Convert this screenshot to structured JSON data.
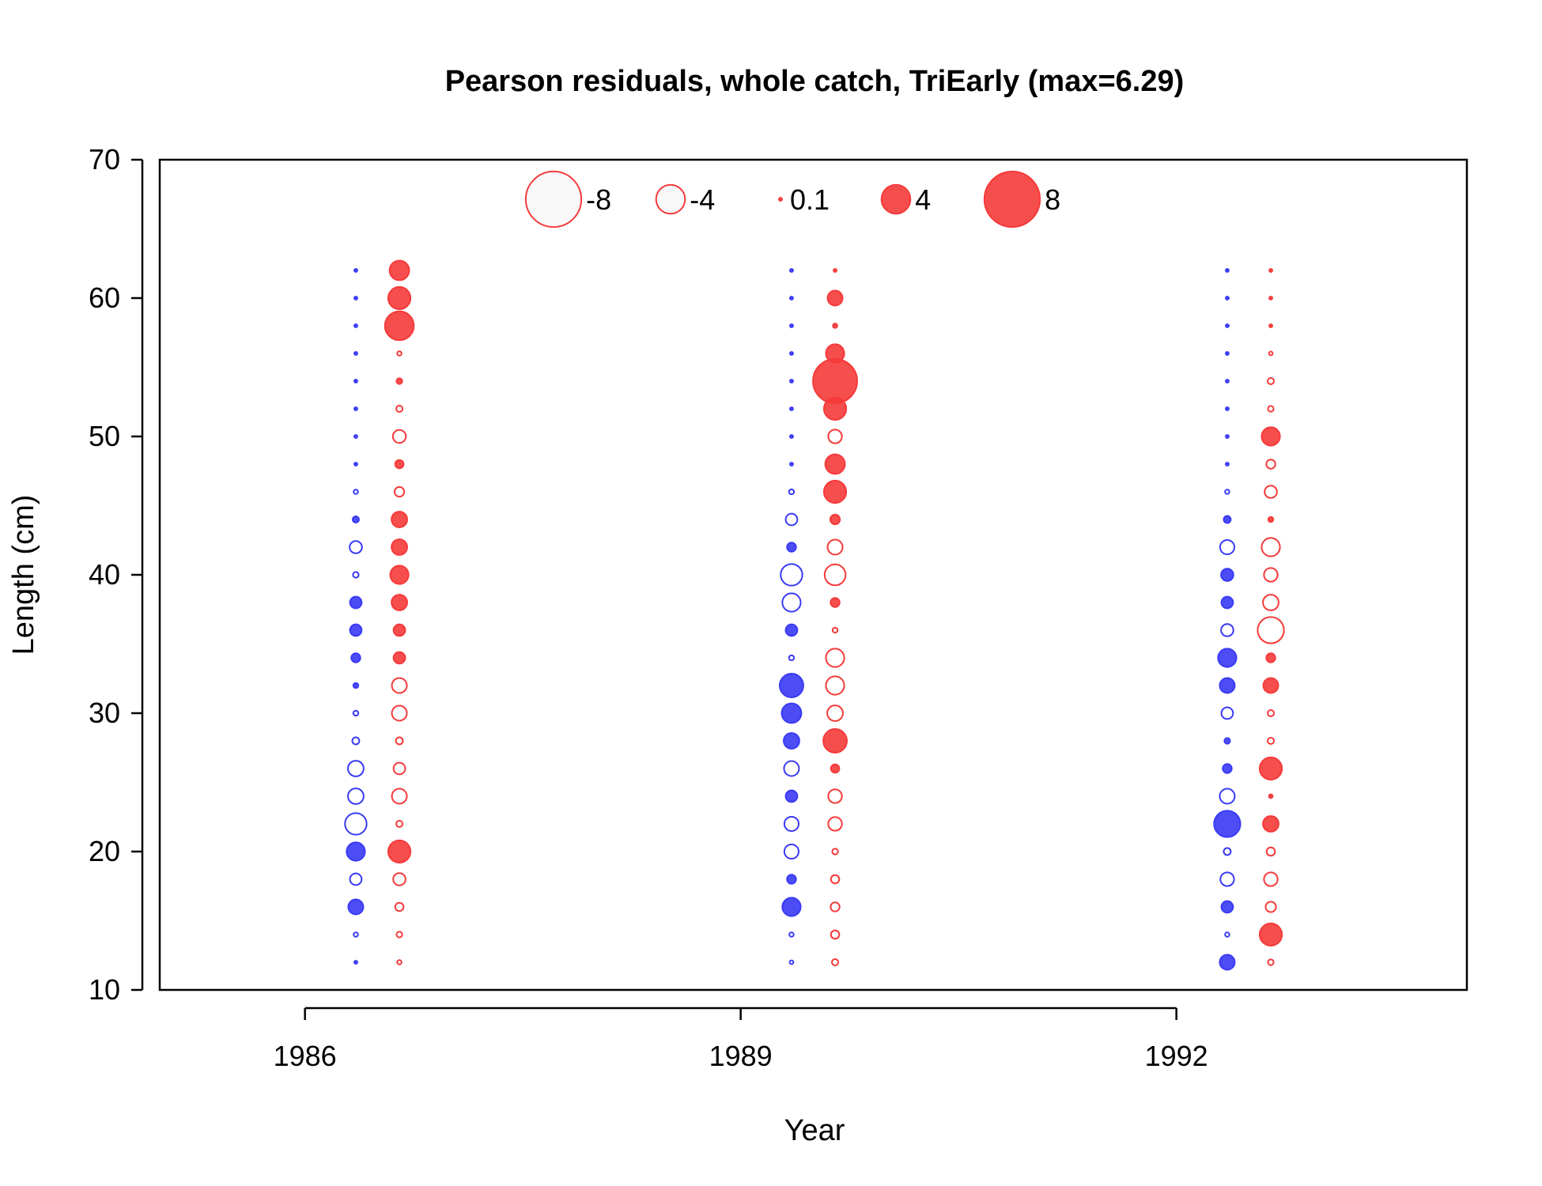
{
  "chart_data": {
    "type": "scatter",
    "subtype": "bubble",
    "title": "Pearson residuals, whole catch, TriEarly (max=6.29)",
    "xlabel": "Year",
    "ylabel": "Length (cm)",
    "xlim": [
      1985.0,
      1994.0
    ],
    "ylim": [
      10,
      70
    ],
    "x_ticks": [
      1986,
      1989,
      1992
    ],
    "y_ticks": [
      10,
      20,
      30,
      40,
      50,
      60,
      70
    ],
    "grid": false,
    "legend_position": "top",
    "colors": {
      "blue": "#3a3af5",
      "red": "#f53a3a"
    },
    "legend": [
      {
        "label": "-8",
        "value": -8
      },
      {
        "label": "-4",
        "value": -4
      },
      {
        "label": "0.1",
        "value": 0.1
      },
      {
        "label": "4",
        "value": 4
      },
      {
        "label": "8",
        "value": 8
      }
    ],
    "series": [
      {
        "color": "blue",
        "x": 1986.35,
        "points": [
          [
            62,
            0.1
          ],
          [
            60,
            0.1
          ],
          [
            58,
            0.1
          ],
          [
            56,
            0.1
          ],
          [
            54,
            0.1
          ],
          [
            52,
            0.1
          ],
          [
            50,
            0.1
          ],
          [
            48,
            0.1
          ],
          [
            46,
            -0.3
          ],
          [
            44,
            0.6
          ],
          [
            42,
            -1.5
          ],
          [
            40,
            -0.5
          ],
          [
            38,
            1.4
          ],
          [
            36,
            1.4
          ],
          [
            34,
            1.0
          ],
          [
            32,
            0.4
          ],
          [
            30,
            -0.4
          ],
          [
            28,
            -0.7
          ],
          [
            26,
            -2.0
          ],
          [
            24,
            -2.0
          ],
          [
            22,
            -2.9
          ],
          [
            20,
            2.4
          ],
          [
            18,
            -1.4
          ],
          [
            16,
            1.9
          ],
          [
            14,
            -0.3
          ],
          [
            12,
            0.1
          ]
        ]
      },
      {
        "color": "red",
        "x": 1986.65,
        "points": [
          [
            62,
            2.6
          ],
          [
            60,
            3.0
          ],
          [
            58,
            4.0
          ],
          [
            56,
            -0.3
          ],
          [
            54,
            0.5
          ],
          [
            52,
            -0.6
          ],
          [
            50,
            -1.6
          ],
          [
            48,
            0.9
          ],
          [
            46,
            -1.1
          ],
          [
            44,
            2.0
          ],
          [
            42,
            2.0
          ],
          [
            40,
            2.4
          ],
          [
            38,
            2.0
          ],
          [
            36,
            1.4
          ],
          [
            34,
            1.4
          ],
          [
            32,
            -1.9
          ],
          [
            30,
            -1.9
          ],
          [
            28,
            -0.7
          ],
          [
            26,
            -1.4
          ],
          [
            24,
            -1.9
          ],
          [
            22,
            -0.6
          ],
          [
            20,
            3.0
          ],
          [
            18,
            -1.5
          ],
          [
            16,
            -0.9
          ],
          [
            14,
            -0.5
          ],
          [
            12,
            -0.3
          ]
        ]
      },
      {
        "color": "blue",
        "x": 1989.35,
        "points": [
          [
            62,
            0.1
          ],
          [
            60,
            0.1
          ],
          [
            58,
            0.1
          ],
          [
            56,
            0.1
          ],
          [
            54,
            0.1
          ],
          [
            52,
            0.1
          ],
          [
            50,
            0.1
          ],
          [
            48,
            0.1
          ],
          [
            46,
            -0.4
          ],
          [
            44,
            -1.4
          ],
          [
            42,
            1.0
          ],
          [
            40,
            -2.9
          ],
          [
            38,
            -2.4
          ],
          [
            36,
            1.4
          ],
          [
            34,
            -0.4
          ],
          [
            32,
            3.2
          ],
          [
            30,
            2.6
          ],
          [
            28,
            2.0
          ],
          [
            26,
            -1.9
          ],
          [
            24,
            1.4
          ],
          [
            22,
            -1.8
          ],
          [
            20,
            -1.8
          ],
          [
            18,
            1.0
          ],
          [
            16,
            2.4
          ],
          [
            14,
            -0.3
          ],
          [
            12,
            -0.2
          ]
        ]
      },
      {
        "color": "red",
        "x": 1989.65,
        "points": [
          [
            62,
            0.1
          ],
          [
            60,
            1.9
          ],
          [
            58,
            0.3
          ],
          [
            56,
            2.4
          ],
          [
            54,
            6.29
          ],
          [
            52,
            3.0
          ],
          [
            50,
            -1.7
          ],
          [
            48,
            2.6
          ],
          [
            46,
            3.0
          ],
          [
            44,
            1.1
          ],
          [
            42,
            -1.9
          ],
          [
            40,
            -2.8
          ],
          [
            38,
            1.0
          ],
          [
            36,
            -0.4
          ],
          [
            34,
            -2.4
          ],
          [
            32,
            -2.4
          ],
          [
            30,
            -2.0
          ],
          [
            28,
            3.2
          ],
          [
            26,
            0.9
          ],
          [
            24,
            -1.7
          ],
          [
            22,
            -1.7
          ],
          [
            20,
            -0.5
          ],
          [
            18,
            -0.9
          ],
          [
            16,
            -1.0
          ],
          [
            14,
            -0.9
          ],
          [
            12,
            -0.6
          ]
        ]
      },
      {
        "color": "blue",
        "x": 1992.35,
        "points": [
          [
            62,
            0.1
          ],
          [
            60,
            0.1
          ],
          [
            58,
            0.1
          ],
          [
            56,
            0.1
          ],
          [
            54,
            0.1
          ],
          [
            52,
            0.1
          ],
          [
            50,
            0.1
          ],
          [
            48,
            0.1
          ],
          [
            46,
            -0.3
          ],
          [
            44,
            0.7
          ],
          [
            42,
            -1.8
          ],
          [
            40,
            1.5
          ],
          [
            38,
            1.4
          ],
          [
            36,
            -1.5
          ],
          [
            34,
            2.4
          ],
          [
            32,
            1.9
          ],
          [
            30,
            -1.4
          ],
          [
            28,
            0.5
          ],
          [
            26,
            1.0
          ],
          [
            24,
            -1.9
          ],
          [
            22,
            3.6
          ],
          [
            20,
            -0.7
          ],
          [
            18,
            -1.7
          ],
          [
            16,
            1.4
          ],
          [
            14,
            -0.3
          ],
          [
            12,
            1.9
          ]
        ]
      },
      {
        "color": "red",
        "x": 1992.65,
        "points": [
          [
            62,
            0.1
          ],
          [
            60,
            0.1
          ],
          [
            58,
            0.1
          ],
          [
            56,
            -0.2
          ],
          [
            54,
            -0.6
          ],
          [
            52,
            -0.5
          ],
          [
            50,
            2.4
          ],
          [
            48,
            -1.0
          ],
          [
            46,
            -1.5
          ],
          [
            44,
            0.4
          ],
          [
            42,
            -2.4
          ],
          [
            40,
            -1.7
          ],
          [
            38,
            -2.0
          ],
          [
            36,
            -3.6
          ],
          [
            34,
            1.0
          ],
          [
            32,
            1.9
          ],
          [
            30,
            -0.6
          ],
          [
            28,
            -0.6
          ],
          [
            26,
            3.0
          ],
          [
            24,
            0.2
          ],
          [
            22,
            2.0
          ],
          [
            20,
            -0.9
          ],
          [
            18,
            -1.7
          ],
          [
            16,
            -1.2
          ],
          [
            14,
            3.0
          ],
          [
            12,
            -0.5
          ]
        ]
      }
    ]
  }
}
